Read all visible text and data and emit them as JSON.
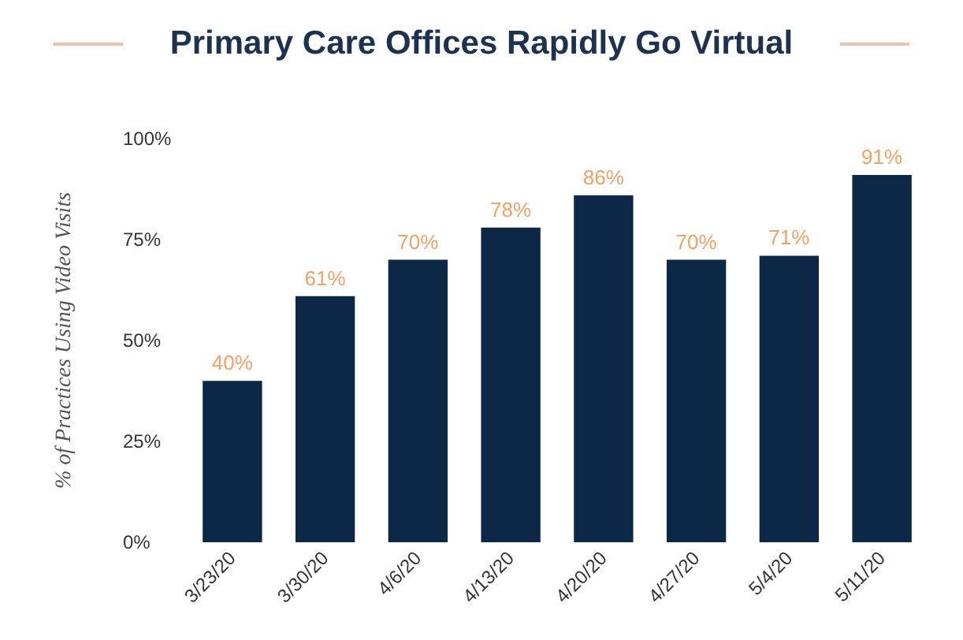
{
  "chart_data": {
    "type": "bar",
    "title": "Primary Care Offices Rapidly Go Virtual",
    "ylabel": "% of Practices Using Video Visits",
    "categories": [
      "3/23/20",
      "3/30/20",
      "4/6/20",
      "4/13/20",
      "4/20/20",
      "4/27/20",
      "5/4/20",
      "5/11/20"
    ],
    "values": [
      40,
      61,
      70,
      78,
      86,
      70,
      71,
      91
    ],
    "value_labels": [
      "40%",
      "61%",
      "70%",
      "78%",
      "86%",
      "70%",
      "71%",
      "91%"
    ],
    "color": "#0d2847",
    "ylim": [
      0,
      100
    ],
    "yticks": [
      {
        "value": 0,
        "label": "0%"
      },
      {
        "value": 25,
        "label": "25%"
      },
      {
        "value": 50,
        "label": "50%"
      },
      {
        "value": 75,
        "label": "75%"
      },
      {
        "value": 100,
        "label": "100%"
      }
    ],
    "grid": false
  }
}
